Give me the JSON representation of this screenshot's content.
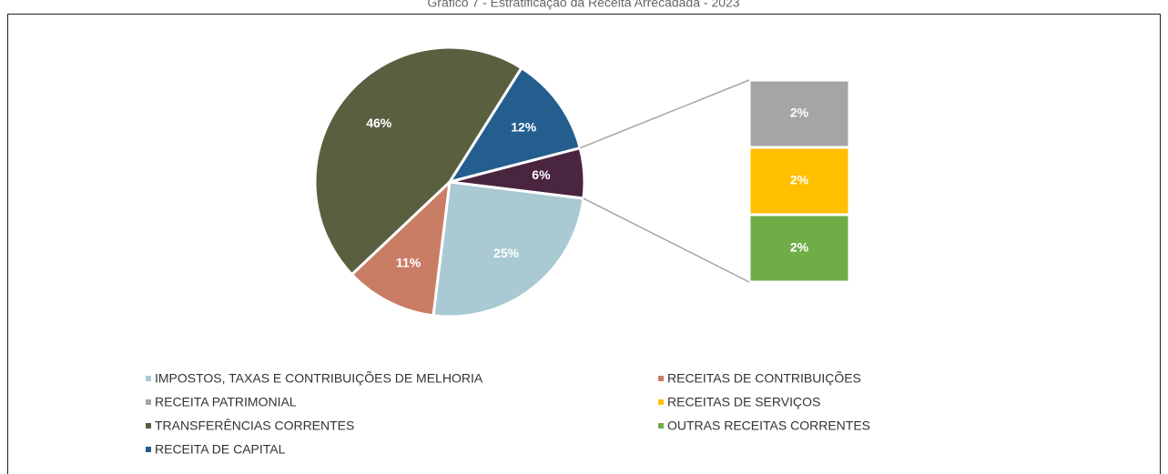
{
  "chart_data": {
    "type": "pie-of-bar",
    "title": "Gráfico 7 - Estratificação da Receita Arrecadada - 2023",
    "pie": {
      "categories": [
        "IMPOSTOS, TAXAS E CONTRIBUIÇÕES DE MELHORIA",
        "RECEITAS DE CONTRIBUIÇÕES",
        "TRANSFERÊNCIAS CORRENTES",
        "RECEITA DE CAPITAL",
        null
      ],
      "values": [
        25,
        11,
        46,
        12,
        6
      ],
      "value_labels": [
        "25%",
        "11%",
        "46%",
        "12%",
        "6%"
      ],
      "colors": [
        "#a9c9d3",
        "#c97d65",
        "#5a5f40",
        "#245e8f",
        "#4a2540"
      ]
    },
    "bar": {
      "categories": [
        "RECEITA PATRIMONIAL",
        "RECEITAS DE SERVIÇOS",
        "OUTRAS RECEITAS CORRENTES"
      ],
      "values": [
        2,
        2,
        2
      ],
      "value_labels": [
        "2%",
        "2%",
        "2%"
      ],
      "colors": [
        "#a5a5a5",
        "#ffc000",
        "#70ad47"
      ]
    }
  }
}
